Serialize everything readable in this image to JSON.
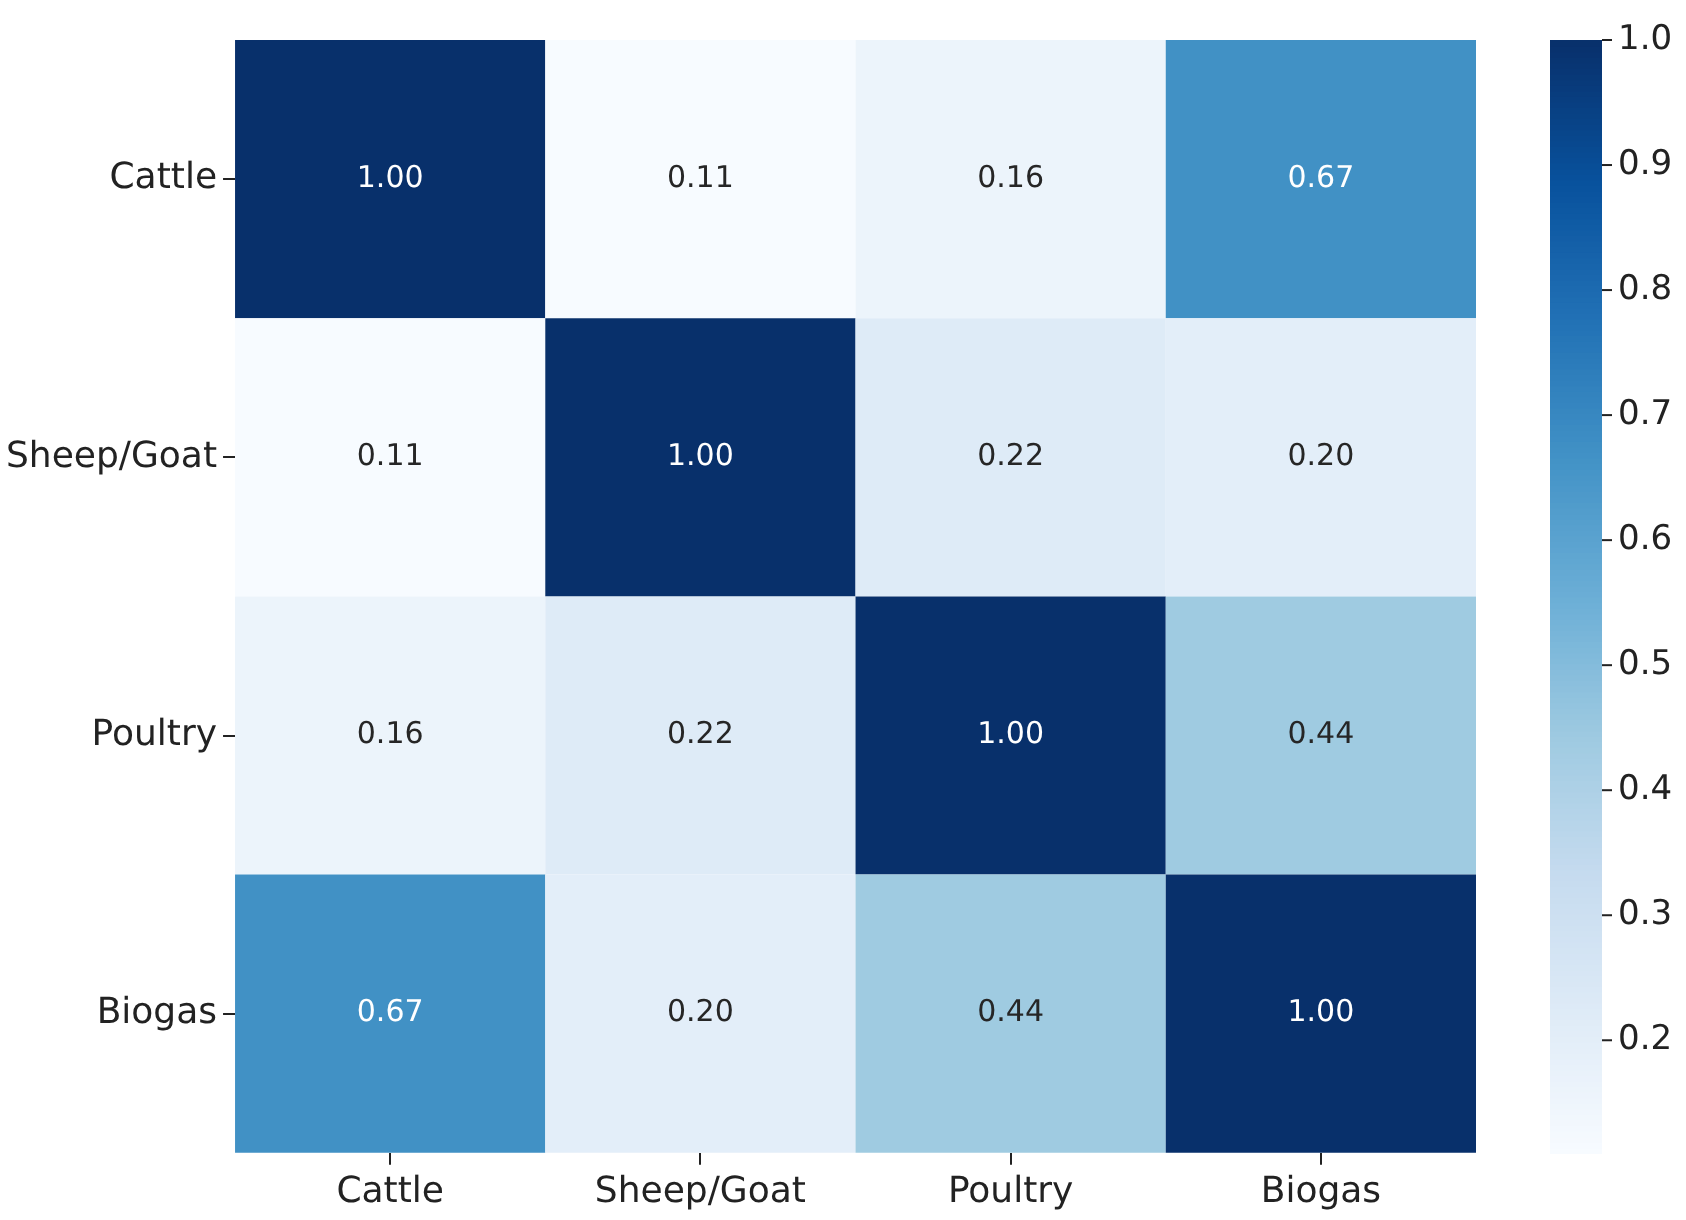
{
  "chart_data": {
    "type": "heatmap",
    "categories": [
      "Cattle",
      "Sheep/Goat",
      "Poultry",
      "Biogas"
    ],
    "y_categories": [
      "Cattle",
      "Sheep/Goat",
      "Poultry",
      "Biogas"
    ],
    "cells": [
      [
        1.0,
        0.11,
        0.16,
        0.67
      ],
      [
        0.11,
        1.0,
        0.22,
        0.2
      ],
      [
        0.16,
        0.22,
        1.0,
        0.44
      ],
      [
        0.67,
        0.2,
        0.44,
        1.0
      ]
    ],
    "cell_labels": [
      [
        "1.00",
        "0.11",
        "0.16",
        "0.67"
      ],
      [
        "0.11",
        "1.00",
        "0.22",
        "0.20"
      ],
      [
        "0.16",
        "0.22",
        "1.00",
        "0.44"
      ],
      [
        "0.67",
        "0.20",
        "0.44",
        "1.00"
      ]
    ],
    "clim": [
      0.11,
      1.0
    ],
    "cticks": [
      0.2,
      0.3,
      0.4,
      0.5,
      0.6,
      0.7,
      0.8,
      0.9,
      {
        "value": 1.0,
        "label": "1.0"
      }
    ]
  }
}
